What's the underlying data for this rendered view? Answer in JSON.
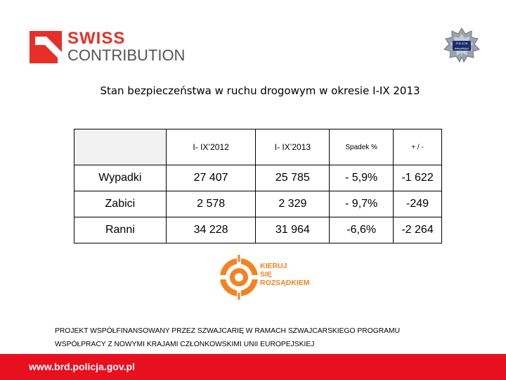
{
  "logo": {
    "line1": "SWISS",
    "line2": "CONTRIBUTION"
  },
  "badge": {
    "top_text": "POLICJA",
    "bottom_text": "www.policja.pl"
  },
  "title": "Stan bezpieczeństwa w ruchu drogowym w okresie I-IX 2013",
  "table": {
    "headers": [
      "",
      "I- IX’2012",
      "I- IX’2013",
      "Spadek %",
      "+ / -"
    ],
    "rows": [
      {
        "label": "Wypadki",
        "y2012": "27 407",
        "y2013": "25 785",
        "change_pct": "- 5,9%",
        "diff": "-1 622"
      },
      {
        "label": "Zabici",
        "y2012": "2 578",
        "y2013": "2 329",
        "change_pct": "- 9,7%",
        "diff": "-249"
      },
      {
        "label": "Ranni",
        "y2012": "34 228",
        "y2013": "31 964",
        "change_pct": "-6,6%",
        "diff": "-2 264"
      }
    ]
  },
  "campaign": {
    "line1": "KIERUJ",
    "line2": "SIĘ",
    "line3": "ROZSĄDKIEM",
    "color": "#f58220"
  },
  "project_note": {
    "line1": "PROJEKT WSPÓŁFINANSOWANY PRZEZ SZWAJCARIĘ W RAMACH SZWAJCARSKIEGO PROGRAMU",
    "line2": "WSPÓŁPRACY Z NOWYMI KRAJAMI CZŁONKOWSKIMI UNII EUROPEJSKIEJ"
  },
  "footer": {
    "url": "www.brd.policja.gov.pl",
    "color": "#e8101f"
  },
  "colors": {
    "brand_red": "#e63027",
    "logo_gray": "#555555"
  }
}
